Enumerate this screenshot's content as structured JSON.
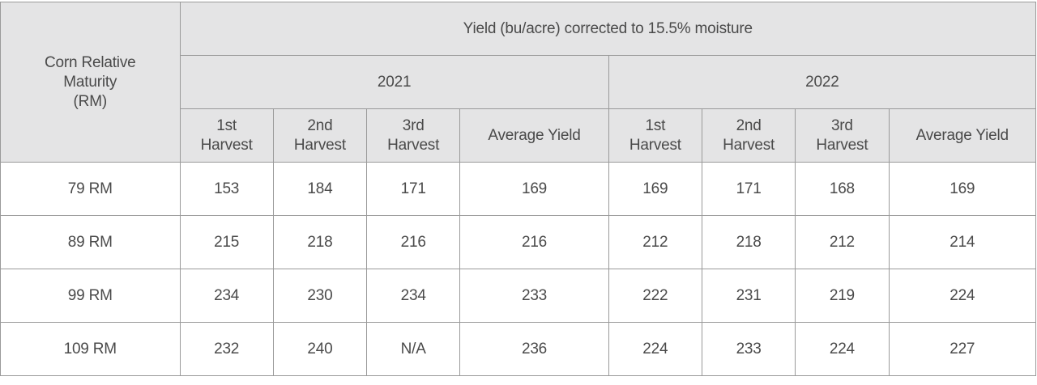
{
  "header": {
    "corner_label_lines": [
      "Corn Relative",
      "Maturity",
      "(RM)"
    ],
    "group_title": "Yield (bu/acre) corrected to 15.5% moisture",
    "years": [
      "2021",
      "2022"
    ],
    "subcolumns": [
      [
        "1st",
        "Harvest"
      ],
      [
        "2nd",
        "Harvest"
      ],
      [
        "3rd",
        "Harvest"
      ],
      [
        "Average Yield"
      ]
    ]
  },
  "rows": [
    {
      "rm": "79 RM",
      "y2021": [
        "153",
        "184",
        "171",
        "169"
      ],
      "y2022": [
        "169",
        "171",
        "168",
        "169"
      ]
    },
    {
      "rm": "89 RM",
      "y2021": [
        "215",
        "218",
        "216",
        "216"
      ],
      "y2022": [
        "212",
        "218",
        "212",
        "214"
      ]
    },
    {
      "rm": "99 RM",
      "y2021": [
        "234",
        "230",
        "234",
        "233"
      ],
      "y2022": [
        "222",
        "231",
        "219",
        "224"
      ]
    },
    {
      "rm": "109 RM",
      "y2021": [
        "232",
        "240",
        "N/A",
        "236"
      ],
      "y2022": [
        "224",
        "233",
        "224",
        "227"
      ]
    }
  ]
}
